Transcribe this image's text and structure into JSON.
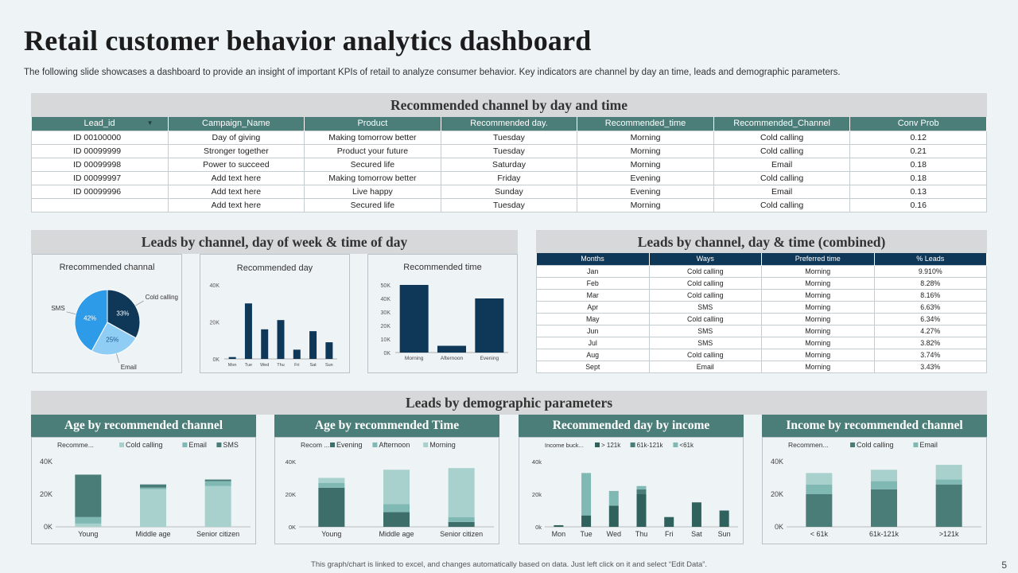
{
  "title": "Retail customer behavior analytics dashboard",
  "subtitle": "The following slide showcases a dashboard to provide an insight of important KPIs of retail to  analyze consumer behavior. Key indicators are channel by day an time, leads and demographic parameters.",
  "section1": {
    "heading": "Recommended channel by day and time",
    "columns": [
      "Lead_id",
      "Campaign_Name",
      "Product",
      "Recommended day.",
      "Recommended_time",
      "Recommended_Channel",
      "Conv Prob"
    ],
    "rows": [
      [
        "ID 00100000",
        "Day of giving",
        "Making tomorrow better",
        "Tuesday",
        "Morning",
        "Cold calling",
        "0.12"
      ],
      [
        "ID 00099999",
        "Stronger together",
        "Product your future",
        "Tuesday",
        "Morning",
        "Cold calling",
        "0.21"
      ],
      [
        "ID 00099998",
        "Power to succeed",
        "Secured life",
        "Saturday",
        "Morning",
        "Email",
        "0.18"
      ],
      [
        "ID 00099997",
        "Add text here",
        "Making tomorrow better",
        "Friday",
        "Evening",
        "Cold calling",
        "0.18"
      ],
      [
        "ID 00099996",
        "Add text here",
        "Live happy",
        "Sunday",
        "Evening",
        "Email",
        "0.13"
      ],
      [
        "",
        "Add text here",
        "Secured life",
        "Tuesday",
        "Morning",
        "Cold calling",
        "0.16"
      ]
    ],
    "filter_icon": "dropdown-arrow-icon"
  },
  "section2": {
    "heading": "Leads by channel, day of week & time of day",
    "pie": {
      "title": "Rrecommended channal",
      "labels": [
        "Cold calling",
        "Email",
        "SMS"
      ],
      "values": [
        33,
        25,
        42
      ],
      "value_labels": [
        "33%",
        "25%",
        "42%"
      ],
      "colors": [
        "#0f3858",
        "#8fcdf5",
        "#2e9be8"
      ]
    },
    "day": {
      "title": "Recommended day",
      "categories": [
        "Mon",
        "Tue",
        "Wed",
        "Thu",
        "Fri",
        "Sat",
        "Sun"
      ],
      "values": [
        1000,
        30000,
        16000,
        21000,
        5000,
        15000,
        9000
      ],
      "ticks": [
        "0K",
        "20K",
        "40K"
      ],
      "ymax": 40000,
      "color": "#0f3858"
    },
    "time": {
      "title": "Recommended time",
      "categories": [
        "Morning",
        "Afternoon",
        "Evening"
      ],
      "values": [
        50000,
        5000,
        40000
      ],
      "ticks": [
        "0K",
        "10K",
        "20K",
        "30K",
        "40K",
        "50K"
      ],
      "ymax": 50000,
      "color": "#0f3858"
    }
  },
  "section3": {
    "heading": "Leads by channel, day & time (combined)",
    "columns": [
      "Months",
      "Ways",
      "Preferred time",
      "% Leads"
    ],
    "rows": [
      [
        "Jan",
        "Cold calling",
        "Morning",
        "9.910%"
      ],
      [
        "Feb",
        "Cold calling",
        "Morning",
        "8.28%"
      ],
      [
        "Mar",
        "Cold calling",
        "Morning",
        "8.16%"
      ],
      [
        "Apr",
        "SMS",
        "Morning",
        "6.63%"
      ],
      [
        "May",
        "Cold calling",
        "Morning",
        "6.34%"
      ],
      [
        "Jun",
        "SMS",
        "Morning",
        "4.27%"
      ],
      [
        "Jul",
        "SMS",
        "Morning",
        "3.82%"
      ],
      [
        "Aug",
        "Cold calling",
        "Morning",
        "3.74%"
      ],
      [
        "Sept",
        "Email",
        "Morning",
        "3.43%"
      ]
    ]
  },
  "section4": {
    "heading": "Leads by demographic parameters"
  },
  "chart_data": [
    {
      "type": "pie",
      "title": "Rrecommended channal",
      "categories": [
        "Cold calling",
        "Email",
        "SMS"
      ],
      "values": [
        33,
        25,
        42
      ]
    },
    {
      "type": "bar",
      "title": "Recommended day",
      "categories": [
        "Mon",
        "Tue",
        "Wed",
        "Thu",
        "Fri",
        "Sat",
        "Sun"
      ],
      "values": [
        1000,
        30000,
        16000,
        21000,
        5000,
        15000,
        9000
      ],
      "ylim": [
        0,
        40000
      ]
    },
    {
      "type": "bar",
      "title": "Recommended time",
      "categories": [
        "Morning",
        "Afternoon",
        "Evening"
      ],
      "values": [
        50000,
        5000,
        40000
      ],
      "ylim": [
        0,
        50000
      ]
    },
    {
      "type": "bar",
      "stacked": true,
      "title": "Age by recommended  channel",
      "legend_title": "Recomme...",
      "categories": [
        "Young",
        "Middle age",
        "Senior citizen"
      ],
      "series": [
        {
          "name": "Cold calling",
          "values": [
            2000,
            23000,
            25000
          ],
          "color": "#a8d0cc"
        },
        {
          "name": "Email",
          "values": [
            4000,
            1000,
            3000
          ],
          "color": "#80b8b4"
        },
        {
          "name": "SMS",
          "values": [
            26000,
            2000,
            1000
          ],
          "color": "#4a7c78"
        }
      ],
      "ticks": [
        "0K",
        "20K",
        "40K"
      ],
      "ylim": [
        0,
        40000
      ]
    },
    {
      "type": "bar",
      "stacked": true,
      "title": "Age by recommended  Time",
      "legend_title": "Recom ...",
      "categories": [
        "Young",
        "Middle age",
        "Senior citizen"
      ],
      "series": [
        {
          "name": "Evening",
          "values": [
            24000,
            9000,
            3000
          ],
          "color": "#3d6e6a"
        },
        {
          "name": "Afternoon",
          "values": [
            3000,
            5000,
            3000
          ],
          "color": "#80b8b4"
        },
        {
          "name": "Morning",
          "values": [
            3000,
            21000,
            30000
          ],
          "color": "#a8d0cc"
        }
      ],
      "ticks": [
        "0K",
        "20K",
        "40K"
      ],
      "ylim": [
        0,
        40000
      ]
    },
    {
      "type": "bar",
      "stacked": true,
      "title": "Recommended day by income",
      "legend_title": "Income buck...",
      "categories": [
        "Mon",
        "Tue",
        "Wed",
        "Thu",
        "Fri",
        "Sat",
        "Sun"
      ],
      "series": [
        {
          "name": "> 121k",
          "values": [
            1000,
            7000,
            13000,
            20000,
            6000,
            15000,
            10000
          ],
          "color": "#2f615d"
        },
        {
          "name": "61k-121k",
          "values": [
            0,
            0,
            0,
            3000,
            0,
            0,
            0
          ],
          "color": "#4a7c78"
        },
        {
          "name": "<61k",
          "values": [
            0,
            26000,
            9000,
            2000,
            0,
            0,
            0
          ],
          "color": "#80b8b4"
        }
      ],
      "ticks": [
        "0k",
        "20k",
        "40k"
      ],
      "ylim": [
        0,
        40000
      ]
    },
    {
      "type": "bar",
      "stacked": true,
      "title": "Income  by recommended  channel",
      "legend_title": "Recommen...",
      "categories": [
        "< 61k",
        "61k-121k",
        ">121k"
      ],
      "series": [
        {
          "name": "Cold calling",
          "values": [
            20000,
            23000,
            26000
          ],
          "color": "#4a7c78"
        },
        {
          "name": "Email",
          "values": [
            6000,
            5000,
            3000
          ],
          "color": "#80b8b4"
        },
        {
          "name": "",
          "values": [
            7000,
            7000,
            9000
          ],
          "color": "#a8d0cc"
        }
      ],
      "ticks": [
        "0K",
        "20K",
        "40K"
      ],
      "ylim": [
        0,
        40000
      ]
    }
  ],
  "footnote": "This graph/chart is linked to excel, and changes automatically based on data. Just left click on it and select “Edit Data”.",
  "page_number": "5"
}
